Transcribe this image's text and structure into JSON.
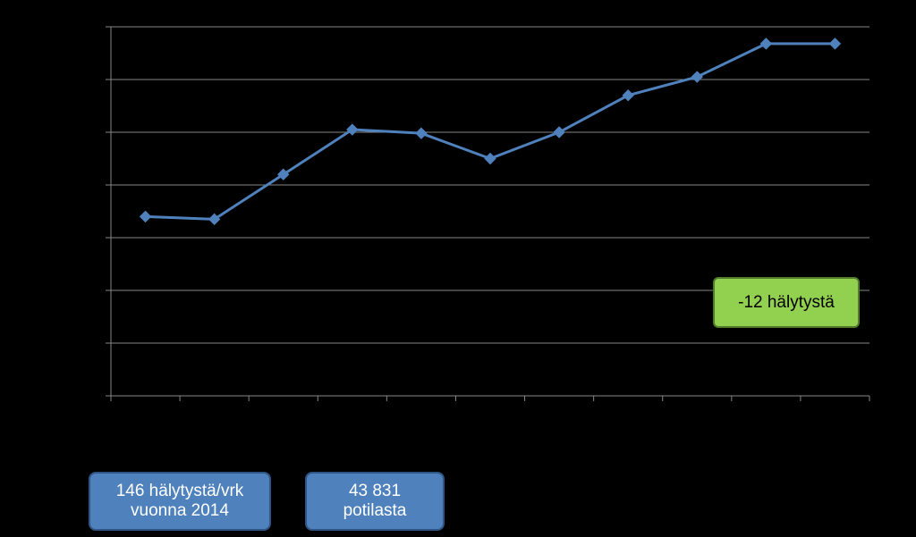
{
  "chart_data": {
    "type": "line",
    "x": [
      1,
      2,
      3,
      4,
      5,
      6,
      7,
      8,
      9,
      10,
      11
    ],
    "series": [
      {
        "values": [
          3.4,
          3.35,
          4.2,
          5.05,
          4.98,
          4.5,
          5.0,
          5.7,
          6.05,
          6.68,
          6.68
        ]
      }
    ],
    "ylim": [
      0,
      7
    ],
    "yticks": 8,
    "xticks": 12,
    "grid": true,
    "line_color": "#4f81bd",
    "axis_color": "#868686"
  },
  "annotations": {
    "savings": "-12 hälytystä",
    "daily_line1": "146 hälytystä/vrk",
    "daily_line2": "vuonna 2014",
    "patients_line1": "43 831",
    "patients_line2": "potilasta"
  },
  "colors": {
    "background": "#000000",
    "green_box": "#92d050",
    "blue_box": "#4f81bd"
  }
}
